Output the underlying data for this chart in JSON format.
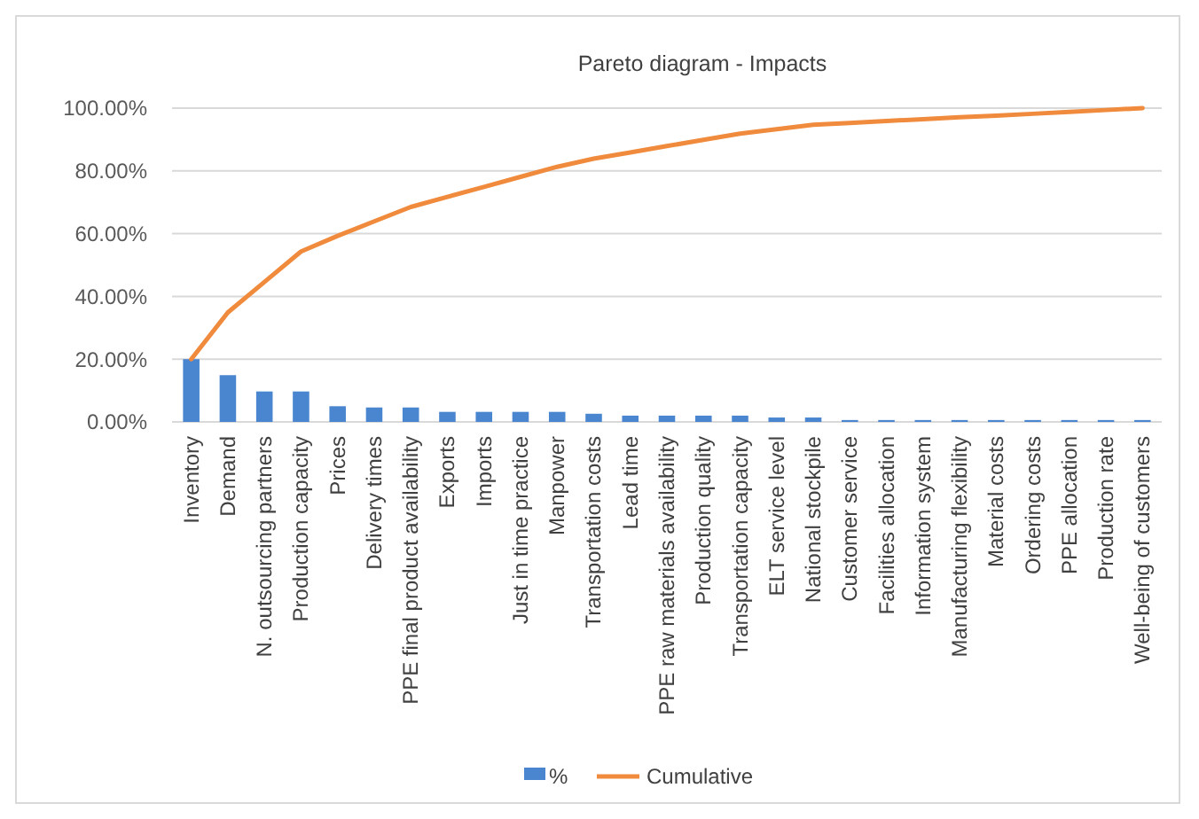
{
  "chart_data": {
    "type": "bar",
    "title": "Pareto diagram - Impacts",
    "categories": [
      "Inventory",
      "Demand",
      "N. outsourcing partners",
      "Production capacity",
      "Prices",
      "Delivery times",
      "PPE final product availability",
      "Exports",
      "Imports",
      "Just in time practice",
      "Manpower",
      "Transportation costs",
      "Lead time",
      "PPE raw materials availability",
      "Production quality",
      "Transportation capacity",
      "ELT service level",
      "National stockpile",
      "Customer service",
      "Facilities allocation",
      "Information system",
      "Manufacturing flexibility",
      "Material costs",
      "Ordering costs",
      "PPE allocation",
      "Production rate",
      "Well-being of customers"
    ],
    "series": [
      {
        "name": "%",
        "color": "#4a86cf",
        "values": [
          20,
          14.9,
          9.7,
          9.7,
          5.0,
          4.6,
          4.6,
          3.2,
          3.2,
          3.2,
          3.2,
          2.6,
          2.0,
          2.0,
          2.0,
          2.0,
          1.4,
          1.4,
          0.6,
          0.6,
          0.6,
          0.6,
          0.6,
          0.6,
          0.6,
          0.6,
          0.6
        ]
      },
      {
        "name": "Cumulative",
        "type": "line",
        "color": "#f08a3c",
        "values": [
          20,
          34.9,
          44.6,
          54.3,
          59.3,
          63.9,
          68.5,
          71.7,
          74.9,
          78.1,
          81.3,
          83.9,
          85.9,
          87.9,
          89.9,
          91.9,
          93.3,
          94.7,
          95.3,
          95.9,
          96.5,
          97.1,
          97.6,
          98.2,
          98.8,
          99.4,
          100
        ]
      }
    ],
    "ylim": [
      0,
      100
    ],
    "yticks": [
      {
        "value": 0,
        "label": "0.00%"
      },
      {
        "value": 20,
        "label": "20.00%"
      },
      {
        "value": 40,
        "label": "40.00%"
      },
      {
        "value": 60,
        "label": "60.00%"
      },
      {
        "value": 80,
        "label": "80.00%"
      },
      {
        "value": 100,
        "label": "100.00%"
      }
    ],
    "grid": "y",
    "legend": "bottom"
  }
}
